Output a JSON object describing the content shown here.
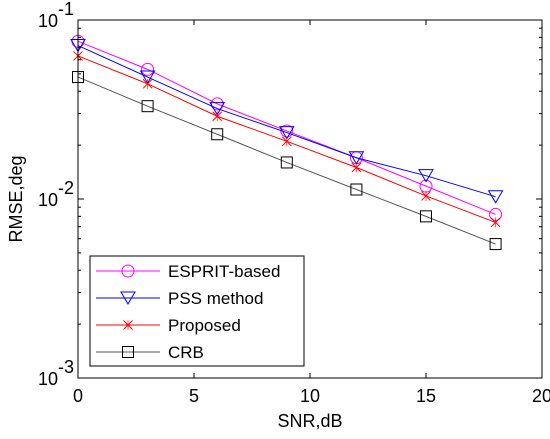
{
  "chart_data": {
    "type": "line",
    "xlabel": "SNR,dB",
    "ylabel": "RMSE,deg",
    "xlim": [
      0,
      20
    ],
    "xticks": [
      0,
      5,
      10,
      15,
      20
    ],
    "yscale": "log",
    "ylim": [
      0.001,
      0.1
    ],
    "ytick_labels": [
      {
        "value": 0.1,
        "base": "10",
        "exp": "-1"
      },
      {
        "value": 0.01,
        "base": "10",
        "exp": "-2"
      },
      {
        "value": 0.001,
        "base": "10",
        "exp": "-3"
      }
    ],
    "grid": false,
    "legend_position": "bottom-left",
    "x": [
      0,
      3,
      6,
      9,
      12,
      15,
      18
    ],
    "series": [
      {
        "name": "ESPRIT-based",
        "color": "#ff00ff",
        "marker": "circle",
        "values": [
          0.076,
          0.053,
          0.034,
          0.024,
          0.017,
          0.0118,
          0.0082
        ]
      },
      {
        "name": "PSS method",
        "color": "#0000ff",
        "marker": "triangle-down",
        "values": [
          0.072,
          0.048,
          0.032,
          0.0235,
          0.017,
          0.0135,
          0.0103
        ]
      },
      {
        "name": "Proposed",
        "color": "#ff0000",
        "marker": "x",
        "values": [
          0.063,
          0.044,
          0.029,
          0.021,
          0.015,
          0.0104,
          0.0074
        ]
      },
      {
        "name": "CRB",
        "color": "#000000",
        "marker": "square",
        "line_color": "#555555",
        "values": [
          0.048,
          0.033,
          0.023,
          0.016,
          0.0113,
          0.008,
          0.0056
        ]
      }
    ]
  }
}
